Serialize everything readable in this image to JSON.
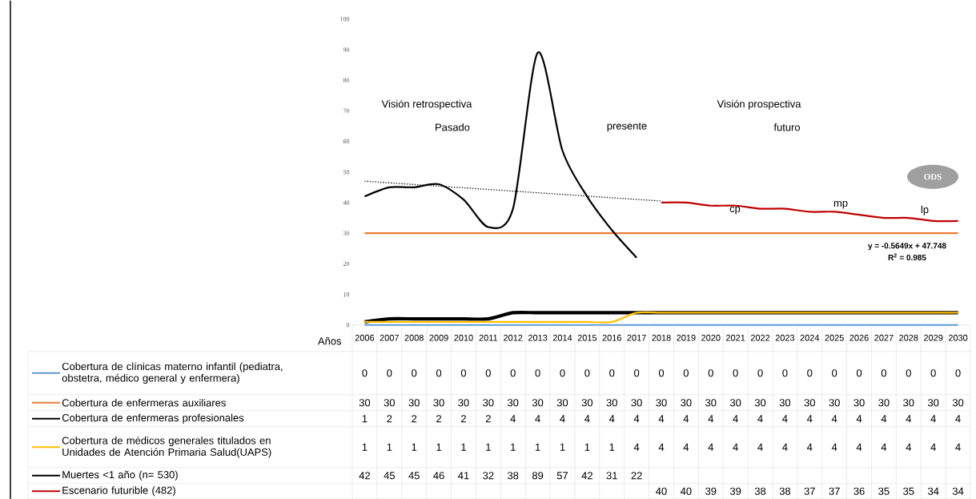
{
  "chart_data": {
    "type": "line",
    "xlabel": "Años",
    "categories": [
      "2006",
      "2007",
      "2008",
      "2009",
      "2010",
      "2011",
      "2012",
      "2013",
      "2014",
      "2015",
      "2016",
      "2017",
      "2018",
      "2019",
      "2020",
      "2021",
      "2022",
      "2023",
      "2024",
      "2025",
      "2026",
      "2027",
      "2028",
      "2029",
      "2030"
    ],
    "ylim": [
      0,
      100
    ],
    "yticks": [
      0,
      10,
      20,
      30,
      40,
      50,
      60,
      70,
      80,
      90,
      100
    ],
    "legend": "bottom",
    "series": [
      {
        "name": "Cobertura de clínicas materno infantil (pediatra, obstetra, médico general y enfermera)",
        "color": "#5b9bd5",
        "data_labels": true,
        "values": [
          0,
          0,
          0,
          0,
          0,
          0,
          0,
          0,
          0,
          0,
          0,
          0,
          0,
          0,
          0,
          0,
          0,
          0,
          0,
          0,
          0,
          0,
          0,
          0,
          0
        ]
      },
      {
        "name": "Cobertura de enfermeras auxiliares",
        "color": "#ed7d31",
        "data_labels": true,
        "values": [
          30,
          30,
          30,
          30,
          30,
          30,
          30,
          30,
          30,
          30,
          30,
          30,
          30,
          30,
          30,
          30,
          30,
          30,
          30,
          30,
          30,
          30,
          30,
          30,
          30
        ]
      },
      {
        "name": "Cobertura de enfermeras profesionales",
        "color": "#000000",
        "data_labels": true,
        "values": [
          1,
          2,
          2,
          2,
          2,
          2,
          4,
          4,
          4,
          4,
          4,
          4,
          4,
          4,
          4,
          4,
          4,
          4,
          4,
          4,
          4,
          4,
          4,
          4,
          4
        ]
      },
      {
        "name": "Cobertura de médicos generales titulados en Unidades de Atención Primaria Salud(UAPS)",
        "color": "#ffc000",
        "data_labels": true,
        "values": [
          1,
          1,
          1,
          1,
          1,
          1,
          1,
          1,
          1,
          1,
          1,
          4,
          4,
          4,
          4,
          4,
          4,
          4,
          4,
          4,
          4,
          4,
          4,
          4,
          4
        ]
      },
      {
        "name": "Muertes <1 año (n= 530)",
        "color": "#000000",
        "data_labels": true,
        "values": [
          42,
          45,
          45,
          46,
          41,
          32,
          38,
          89,
          57,
          42,
          31,
          22,
          null,
          null,
          null,
          null,
          null,
          null,
          null,
          null,
          null,
          null,
          null,
          null,
          null
        ]
      },
      {
        "name": "Escenario futurible (482)",
        "color": "#c00000",
        "data_labels": true,
        "values": [
          null,
          null,
          null,
          null,
          null,
          null,
          null,
          null,
          null,
          null,
          null,
          null,
          40,
          40,
          39,
          39,
          38,
          38,
          37,
          37,
          36,
          35,
          35,
          34,
          34
        ]
      },
      {
        "type": "line",
        "color": "#000000",
        "line_style": "dotted",
        "values": [
          47,
          null,
          null,
          null,
          null,
          null,
          null,
          null,
          null,
          null,
          null,
          null,
          40.5,
          null,
          null,
          null,
          null,
          null,
          null,
          null,
          null,
          null,
          null,
          null,
          null
        ]
      }
    ],
    "annotations": [
      "Visión retrospectiva",
      "Pasado",
      "presente",
      "Visión prospectiva",
      "futuro",
      "cp",
      "mp",
      "lp",
      "ODS",
      "y = -0.5649x + 47.748",
      "R$^{2}$ = 0.985"
    ]
  }
}
